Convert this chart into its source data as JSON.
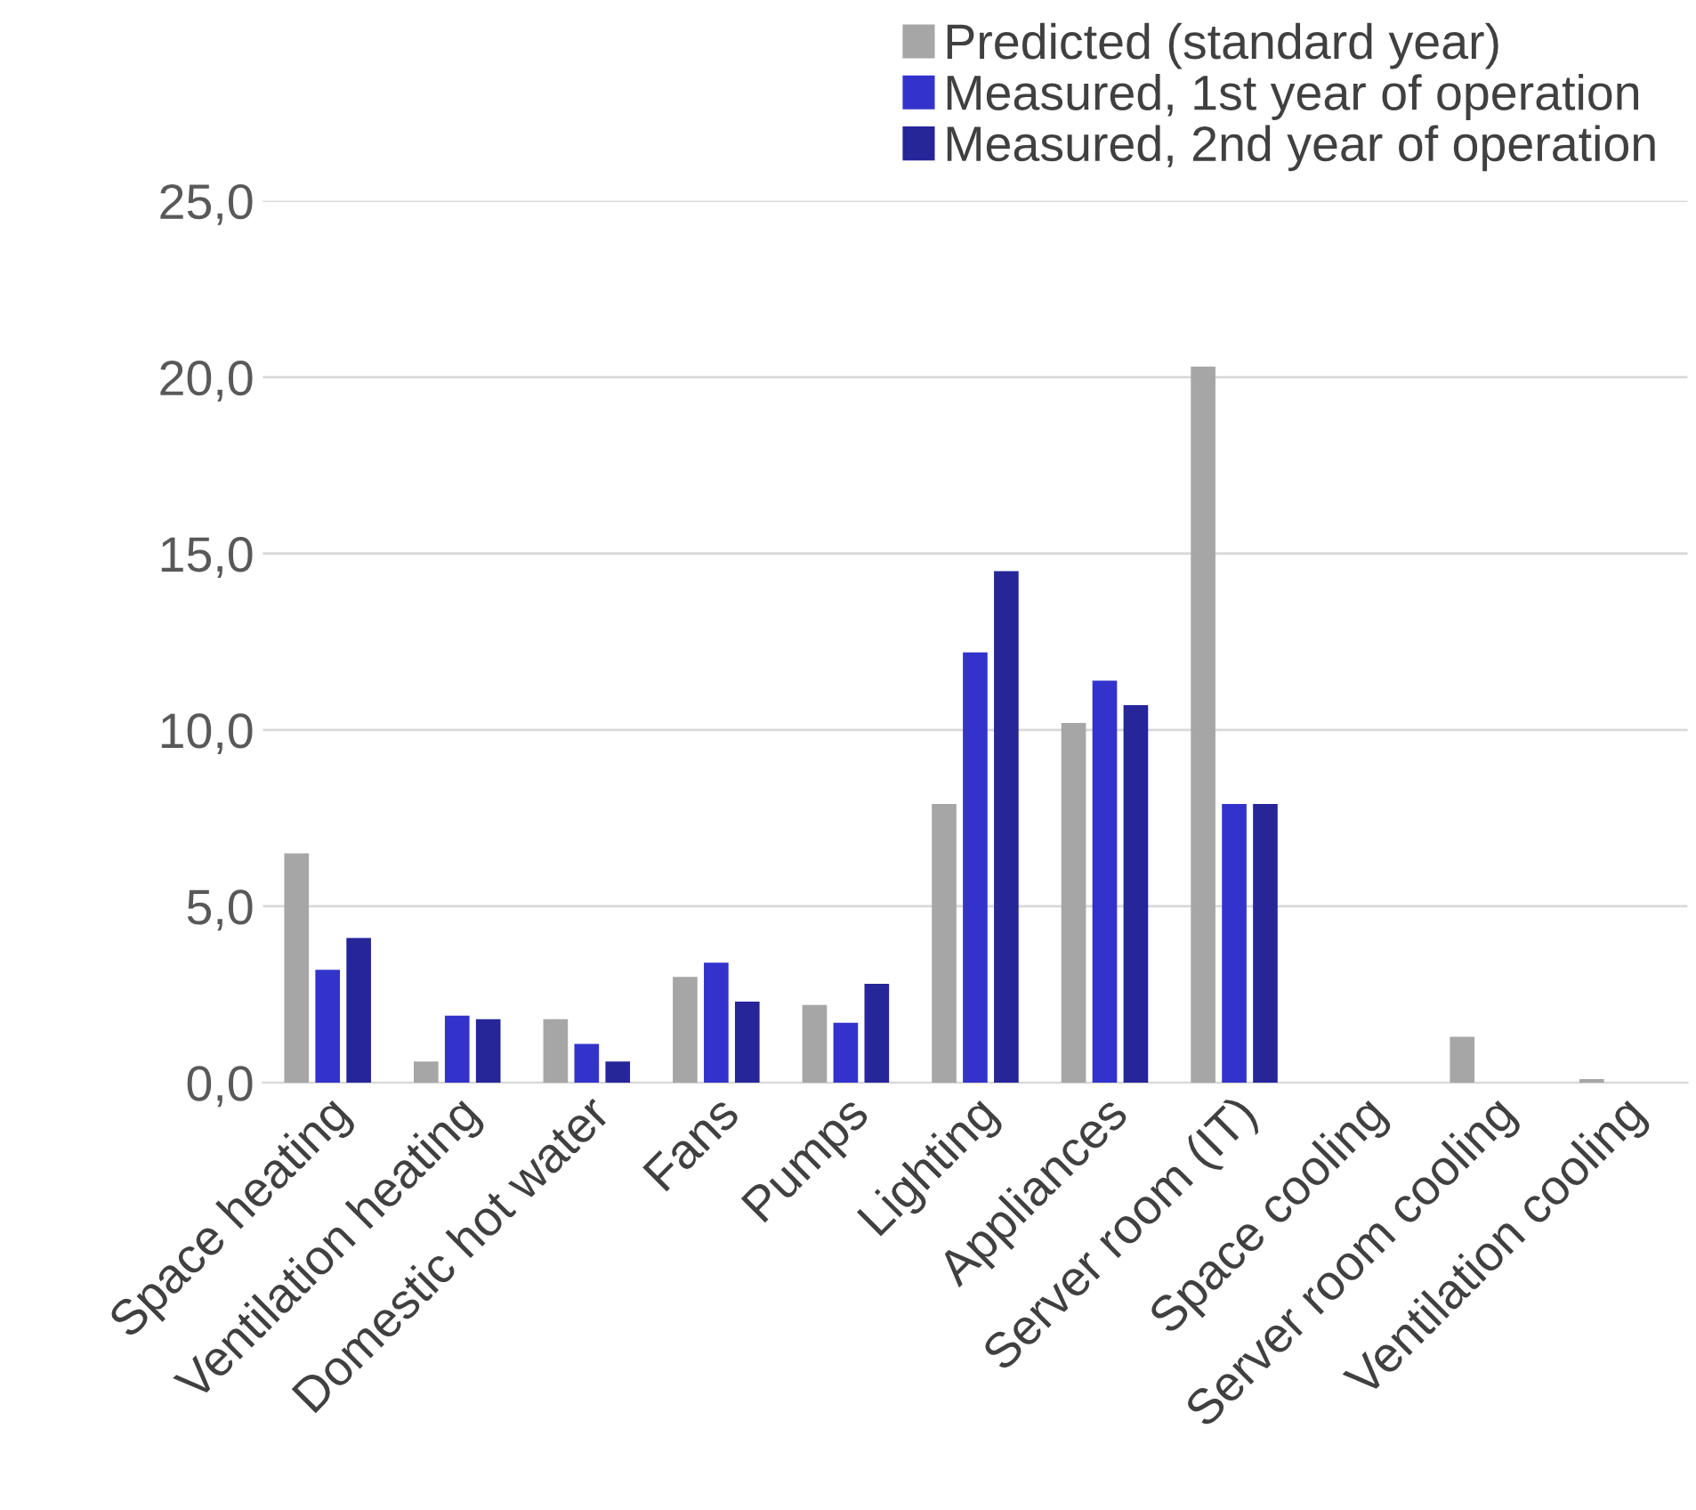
{
  "chart_data": {
    "type": "bar",
    "categories": [
      "Space heating",
      "Ventilation heating",
      "Domestic hot water",
      "Fans",
      "Pumps",
      "Lighting",
      "Appliances",
      "Server room (IT)",
      "Space cooling",
      "Server room cooling",
      "Ventilation cooling"
    ],
    "series": [
      {
        "name": "Predicted (standard year)",
        "color": "#a6a6a6",
        "values": [
          6.5,
          0.6,
          1.8,
          3.0,
          2.2,
          7.9,
          10.2,
          20.3,
          0,
          1.3,
          0.1
        ]
      },
      {
        "name": "Measured, 1st year of operation",
        "color": "#3333cc",
        "values": [
          3.2,
          1.9,
          1.1,
          3.4,
          1.7,
          12.2,
          11.4,
          7.9,
          0,
          0,
          0
        ]
      },
      {
        "name": "Measured, 2nd year of operation",
        "color": "#262699",
        "values": [
          4.1,
          1.8,
          0.6,
          2.3,
          2.8,
          14.5,
          10.7,
          7.9,
          0,
          0,
          0
        ]
      }
    ],
    "ylim": [
      0,
      25
    ],
    "yticks": [
      {
        "value": 0,
        "label": "0,0"
      },
      {
        "value": 5,
        "label": "5,0"
      },
      {
        "value": 10,
        "label": "10,0"
      },
      {
        "value": 15,
        "label": "15,0"
      },
      {
        "value": 20,
        "label": "20,0"
      },
      {
        "value": 25,
        "label": "25,0"
      }
    ],
    "grid": "y",
    "legend": "top right"
  }
}
